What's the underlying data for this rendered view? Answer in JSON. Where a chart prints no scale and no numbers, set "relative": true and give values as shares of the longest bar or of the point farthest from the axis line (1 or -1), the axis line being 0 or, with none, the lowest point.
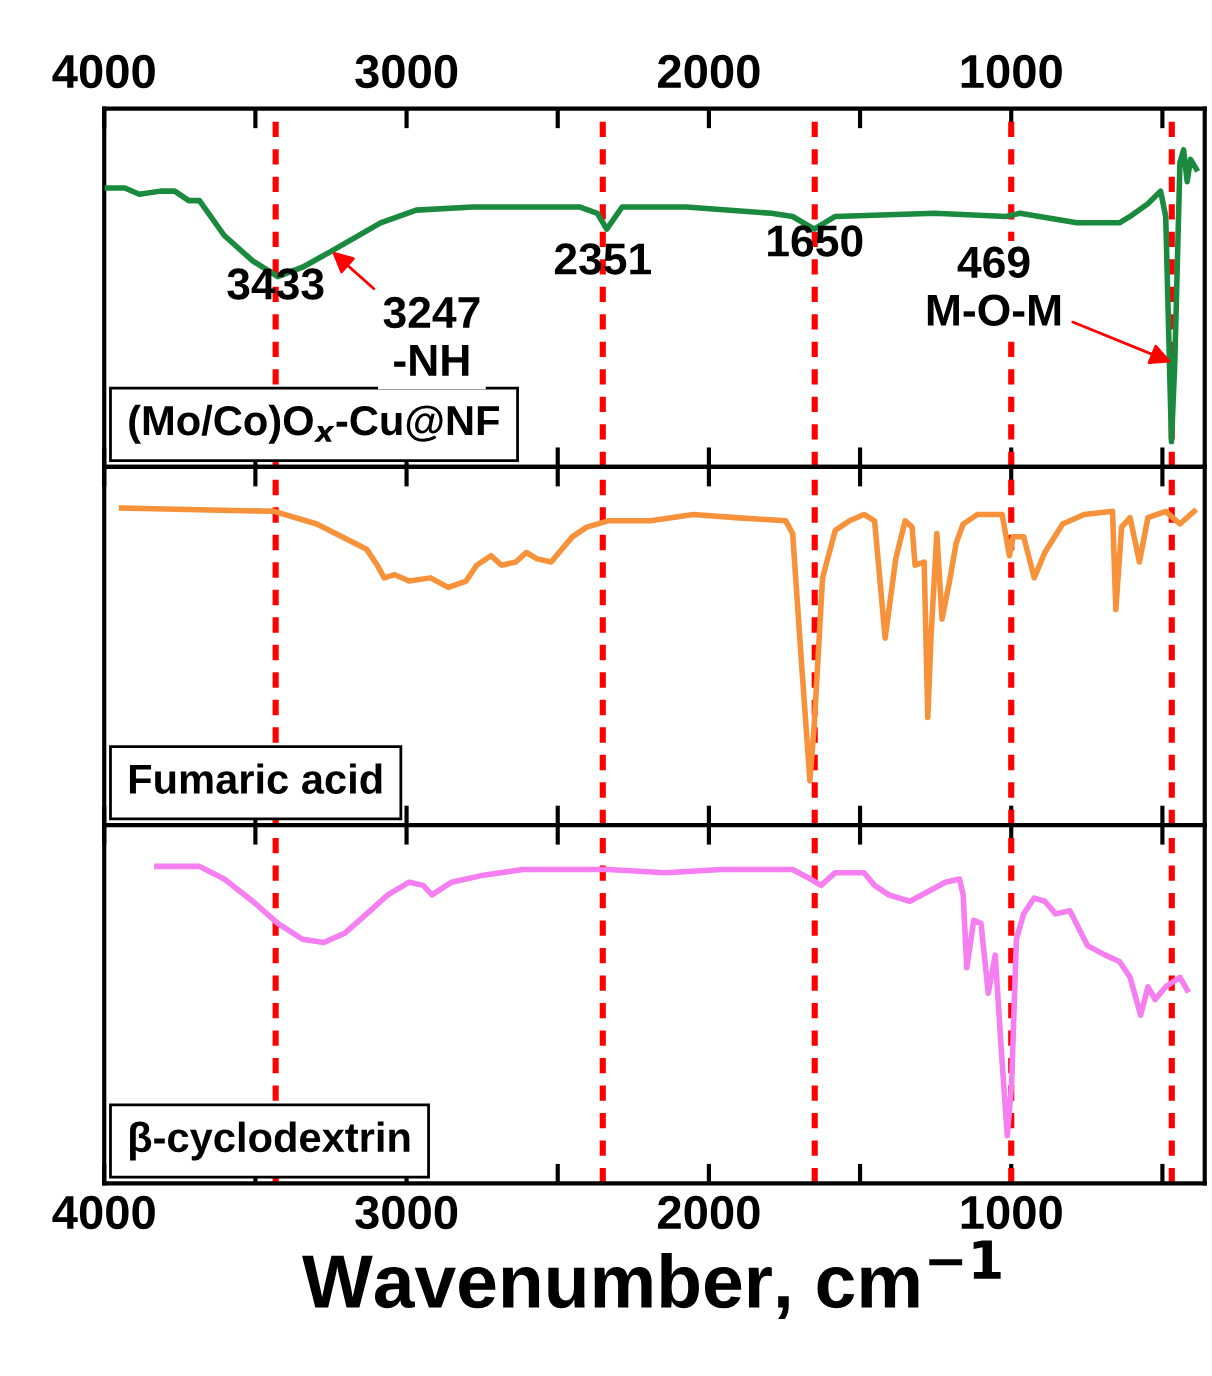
{
  "chart_data": [
    {
      "type": "line",
      "relative": true,
      "xlim": [
        4000,
        360
      ],
      "xticks": [
        4000,
        {
          "value": 3500,
          "label": null
        },
        3000,
        {
          "value": 2500,
          "label": null
        },
        2000,
        {
          "value": 1500,
          "label": null
        },
        1000,
        {
          "value": 500,
          "label": null
        }
      ],
      "tick_labels": "x",
      "legend": "bottom left",
      "series": [
        {
          "name": "(Mo/Co)O$_{x}$-Cu@NF",
          "color": "#1a8a3e",
          "x": [
            3990,
            3932,
            3884,
            3814,
            3767,
            3720,
            3685,
            3603,
            3509,
            3426,
            3344,
            3250,
            3086,
            2968,
            2780,
            2428,
            2369,
            2338,
            2287,
            2075,
            1793,
            1723,
            1652,
            1582,
            1253,
            1018,
            971,
            783,
            642,
            607,
            548,
            506,
            489,
            470,
            459,
            442,
            430,
            418,
            407,
            388
          ],
          "values": [
            0.88,
            0.88,
            0.86,
            0.87,
            0.87,
            0.84,
            0.84,
            0.73,
            0.65,
            0.6,
            0.63,
            0.68,
            0.77,
            0.81,
            0.82,
            0.82,
            0.8,
            0.75,
            0.82,
            0.82,
            0.8,
            0.79,
            0.75,
            0.79,
            0.8,
            0.79,
            0.8,
            0.77,
            0.77,
            0.79,
            0.83,
            0.87,
            0.79,
            0.08,
            0.33,
            0.96,
            1.0,
            0.9,
            0.97,
            0.94
          ]
        }
      ],
      "ref_lines": [
        {
          "axis": "x",
          "value": 3433,
          "label": "3433",
          "color": "#ff0000",
          "line_style": "dashed"
        },
        {
          "axis": "x",
          "value": 2351,
          "label": "2351",
          "color": "#ff0000",
          "line_style": "dashed"
        },
        {
          "axis": "x",
          "value": 1650,
          "label": "1650",
          "color": "#ff0000",
          "line_style": "dashed"
        },
        {
          "axis": "x",
          "value": 1000,
          "color": "#ff0000",
          "line_style": "dashed"
        },
        {
          "axis": "x",
          "value": 469,
          "color": "#ff0000",
          "line_style": "dashed"
        }
      ],
      "annotations": [
        {
          "text": "3247\n-NH",
          "x": 3247,
          "y": 0.68
        },
        {
          "text": "469\nM-O-M",
          "x": 469,
          "y": 0.33
        }
      ]
    },
    {
      "type": "line",
      "relative": true,
      "xlim": [
        4000,
        360
      ],
      "xticks": [
        4000,
        {
          "value": 3500,
          "label": null
        },
        3000,
        {
          "value": 2500,
          "label": null
        },
        2000,
        {
          "value": 1500,
          "label": null
        },
        1000,
        {
          "value": 500,
          "label": null
        }
      ],
      "tick_labels": false,
      "legend": "bottom left",
      "series": [
        {
          "name": "Fumaric acid",
          "color": "#f7923a",
          "x": [
            3943,
            3438,
            3297,
            3132,
            3097,
            3074,
            3039,
            2991,
            2921,
            2862,
            2803,
            2768,
            2721,
            2686,
            2639,
            2604,
            2568,
            2522,
            2451,
            2404,
            2334,
            2193,
            2052,
            1911,
            1746,
            1723,
            1695,
            1666,
            1652,
            1624,
            1582,
            1535,
            1487,
            1452,
            1417,
            1382,
            1351,
            1328,
            1318,
            1288,
            1276,
            1265,
            1246,
            1229,
            1206,
            1182,
            1159,
            1112,
            1030,
            1006,
            994,
            959,
            924,
            889,
            830,
            759,
            665,
            654,
            635,
            607,
            576,
            548,
            489,
            442,
            395
          ],
          "values": [
            1.0,
            0.99,
            0.95,
            0.87,
            0.82,
            0.78,
            0.79,
            0.77,
            0.78,
            0.75,
            0.77,
            0.82,
            0.85,
            0.82,
            0.83,
            0.86,
            0.84,
            0.83,
            0.91,
            0.94,
            0.96,
            0.96,
            0.98,
            0.97,
            0.96,
            0.92,
            0.53,
            0.14,
            0.31,
            0.78,
            0.93,
            0.96,
            0.98,
            0.96,
            0.59,
            0.84,
            0.96,
            0.94,
            0.82,
            0.83,
            0.34,
            0.6,
            0.92,
            0.65,
            0.76,
            0.89,
            0.95,
            0.98,
            0.98,
            0.85,
            0.91,
            0.91,
            0.78,
            0.86,
            0.95,
            0.98,
            0.99,
            0.68,
            0.94,
            0.97,
            0.83,
            0.97,
            0.99,
            0.95,
            0.99
          ]
        }
      ],
      "ref_lines": [
        {
          "axis": "x",
          "value": 3433,
          "color": "#ff0000",
          "line_style": "dashed"
        },
        {
          "axis": "x",
          "value": 2351,
          "color": "#ff0000",
          "line_style": "dashed"
        },
        {
          "axis": "x",
          "value": 1650,
          "color": "#ff0000",
          "line_style": "dashed"
        },
        {
          "axis": "x",
          "value": 1000,
          "color": "#ff0000",
          "line_style": "dashed"
        },
        {
          "axis": "x",
          "value": 469,
          "color": "#ff0000",
          "line_style": "dashed"
        }
      ]
    },
    {
      "type": "line",
      "relative": true,
      "xlim": [
        4000,
        360
      ],
      "xticks": [
        4000,
        {
          "value": 3500,
          "label": null
        },
        3000,
        {
          "value": 2500,
          "label": null
        },
        2000,
        {
          "value": 1500,
          "label": null
        },
        1000,
        {
          "value": 500,
          "label": null
        }
      ],
      "tick_labels": "x",
      "legend": "bottom left",
      "xlabel": "Wavenumber, cm$^{−1}$",
      "series": [
        {
          "name": "β-cyclodextrin",
          "color": "#f57ef0",
          "x": [
            3826,
            3685,
            3603,
            3509,
            3426,
            3344,
            3274,
            3203,
            3132,
            3062,
            2991,
            2945,
            2916,
            2851,
            2757,
            2616,
            2334,
            2145,
            1958,
            1723,
            1664,
            1629,
            1582,
            1487,
            1452,
            1405,
            1370,
            1335,
            1276,
            1218,
            1171,
            1159,
            1147,
            1124,
            1100,
            1076,
            1053,
            1030,
            1013,
            999,
            983,
            959,
            924,
            889,
            853,
            806,
            748,
            689,
            642,
            607,
            572,
            548,
            524,
            489,
            442,
            418
          ],
          "values": [
            1.0,
            1.0,
            0.96,
            0.89,
            0.82,
            0.77,
            0.76,
            0.79,
            0.85,
            0.91,
            0.95,
            0.94,
            0.91,
            0.95,
            0.97,
            0.99,
            0.99,
            0.98,
            0.99,
            0.99,
            0.96,
            0.94,
            0.98,
            0.98,
            0.94,
            0.91,
            0.9,
            0.89,
            0.92,
            0.95,
            0.96,
            0.91,
            0.68,
            0.83,
            0.82,
            0.6,
            0.72,
            0.38,
            0.15,
            0.31,
            0.77,
            0.85,
            0.9,
            0.89,
            0.85,
            0.86,
            0.75,
            0.72,
            0.7,
            0.65,
            0.53,
            0.62,
            0.58,
            0.62,
            0.65,
            0.61
          ]
        }
      ],
      "ref_lines": [
        {
          "axis": "x",
          "value": 3433,
          "color": "#ff0000",
          "line_style": "dashed"
        },
        {
          "axis": "x",
          "value": 2351,
          "color": "#ff0000",
          "line_style": "dashed"
        },
        {
          "axis": "x",
          "value": 1650,
          "color": "#ff0000",
          "line_style": "dashed"
        },
        {
          "axis": "x",
          "value": 1000,
          "color": "#ff0000",
          "line_style": "dashed"
        },
        {
          "axis": "x",
          "value": 469,
          "color": "#ff0000",
          "line_style": "dashed"
        }
      ]
    }
  ]
}
